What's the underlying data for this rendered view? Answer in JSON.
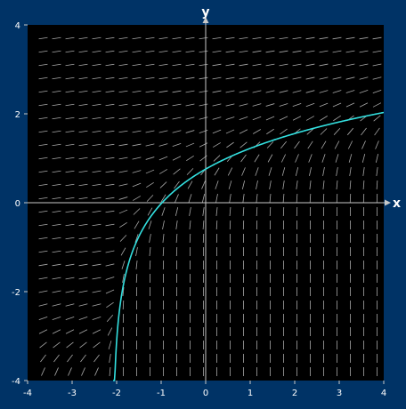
{
  "chart_data": {
    "type": "slope-field",
    "title": "",
    "xlabel": "x",
    "ylabel": "y",
    "xlim": [
      -4,
      4
    ],
    "ylim": [
      -4,
      4
    ],
    "x_ticks": [
      "-4",
      "-3",
      "-2",
      "-1",
      "0",
      "1",
      "2",
      "3",
      "4"
    ],
    "y_ticks": [
      "-4",
      "-2",
      "0",
      "2",
      "4"
    ],
    "grid": false,
    "field": {
      "x_start": -3.65,
      "x_step": 0.3,
      "x_count": 26,
      "y_start": -3.8,
      "y_step": 0.3,
      "y_count": 26,
      "segment_length": 0.2
    },
    "solution_curve": {
      "x_start": -2.08,
      "y_start": -4.0,
      "x_end": 4.0,
      "y_end": 2.03
    },
    "colors": {
      "background": "#003366",
      "plot_area": "#000000",
      "axes": "#c8c8c8",
      "slope_segments": "#a8a8a8",
      "solution_curve": "#33e0e0",
      "text": "#ffffff"
    }
  }
}
